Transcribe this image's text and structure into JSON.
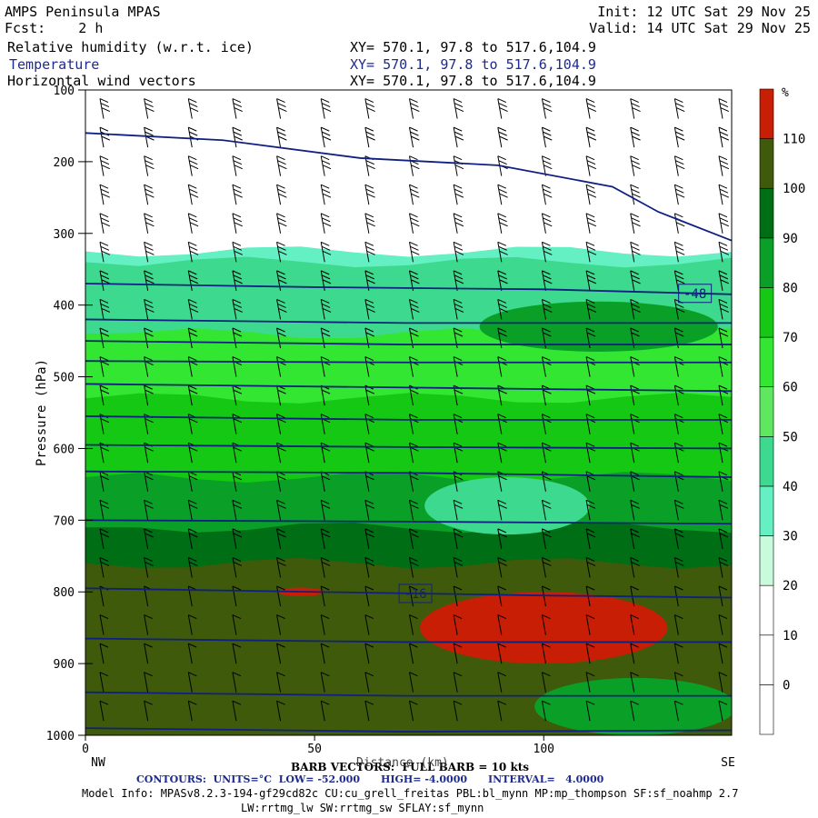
{
  "header": {
    "title": "AMPS Peninsula MPAS",
    "fcst": "Fcst:    2 h",
    "init": "Init: 12 UTC Sat 29 Nov 25",
    "valid": "Valid: 14 UTC Sat 29 Nov 25",
    "fields": [
      {
        "label": "Relative humidity (w.r.t. ice)",
        "xy": "XY= 570.1, 97.8 to 517.6,104.9"
      },
      {
        "label": "Temperature",
        "xy": "XY= 570.1, 97.8 to 517.6,104.9"
      },
      {
        "label": "Horizontal wind vectors",
        "xy": "XY= 570.1, 97.8 to 517.6,104.9"
      }
    ]
  },
  "footer": {
    "barb": "BARB VECTORS:  FULL BARB = 10 kts",
    "distance_label": "Distance (km)",
    "contours": "CONTOURS:  UNITS=°C  LOW= -52.000      HIGH= -4.0000      INTERVAL=   4.0000",
    "model_info": "Model Info: MPASv8.2.3-194-gf29cd82c CU:cu_grell_freitas PBL:bl_mynn MP:mp_thompson SF:sf_noahmp 2.7",
    "model_info2": "LW:rrtmg_lw SW:rrtmg_sw SFLAY:sf_mynn"
  },
  "chart_data": {
    "type": "heatmap",
    "title": "AMPS Peninsula MPAS",
    "ylabel": "Pressure (hPa)",
    "xlabel": "Distance (km)",
    "xlim": [
      0,
      141
    ],
    "ylim": [
      1000,
      100
    ],
    "x_ticks": [
      0,
      50,
      100
    ],
    "y_ticks": [
      100,
      200,
      300,
      400,
      500,
      600,
      700,
      800,
      900,
      1000
    ],
    "x_end_labels": {
      "left": "NW",
      "right": "SE"
    },
    "colorbar": {
      "unit": "%",
      "levels": [
        0,
        10,
        20,
        30,
        40,
        50,
        60,
        70,
        80,
        90,
        100,
        110
      ],
      "colors": [
        "#ffffff",
        "#ffffff",
        "#ffffff",
        "#c8fadc",
        "#64f0c3",
        "#3cd98e",
        "#5fe85f",
        "#32e632",
        "#14c814",
        "#0aa028",
        "#006e14",
        "#3f5a0a",
        "#c81e05"
      ]
    },
    "rh_layers": [
      {
        "p_top": 325,
        "p_bot": 1000,
        "rh": 35
      },
      {
        "p_top": 340,
        "p_bot": 1000,
        "rh": 45
      },
      {
        "p_top": 440,
        "p_bot": 1000,
        "rh": 65
      },
      {
        "p_top": 530,
        "p_bot": 1000,
        "rh": 75
      },
      {
        "p_top": 640,
        "p_bot": 1000,
        "rh": 85
      },
      {
        "p_top": 710,
        "p_bot": 1000,
        "rh": 95
      },
      {
        "p_top": 760,
        "p_bot": 1000,
        "rh": 105
      }
    ],
    "rh_patches": [
      {
        "x": 92,
        "p": 680,
        "dx": 18,
        "dp": 40,
        "rh": 45
      },
      {
        "x": 112,
        "p": 430,
        "dx": 26,
        "dp": 35,
        "rh": 85
      },
      {
        "x": 100,
        "p": 850,
        "dx": 27,
        "dp": 50,
        "rh": 115
      },
      {
        "x": 47,
        "p": 800,
        "dx": 5,
        "dp": 6,
        "rh": 115
      },
      {
        "x": 120,
        "p": 960,
        "dx": 22,
        "dp": 40,
        "rh": 85
      }
    ],
    "temperature_contours": [
      {
        "points": [
          [
            0,
            160
          ],
          [
            30,
            170
          ],
          [
            60,
            195
          ],
          [
            90,
            205
          ],
          [
            115,
            235
          ],
          [
            125,
            270
          ],
          [
            141,
            310
          ]
        ]
      },
      {
        "points": [
          [
            0,
            370
          ],
          [
            50,
            375
          ],
          [
            100,
            378
          ],
          [
            141,
            385
          ]
        ],
        "label": "-48",
        "label_x": 133
      },
      {
        "points": [
          [
            0,
            420
          ],
          [
            70,
            425
          ],
          [
            141,
            425
          ]
        ]
      },
      {
        "points": [
          [
            0,
            450
          ],
          [
            70,
            455
          ],
          [
            141,
            455
          ]
        ]
      },
      {
        "points": [
          [
            0,
            478
          ],
          [
            70,
            480
          ],
          [
            141,
            480
          ]
        ]
      },
      {
        "points": [
          [
            0,
            510
          ],
          [
            70,
            515
          ],
          [
            141,
            520
          ]
        ]
      },
      {
        "points": [
          [
            0,
            555
          ],
          [
            70,
            560
          ],
          [
            141,
            560
          ]
        ]
      },
      {
        "points": [
          [
            0,
            595
          ],
          [
            70,
            598
          ],
          [
            141,
            600
          ]
        ]
      },
      {
        "points": [
          [
            0,
            632
          ],
          [
            70,
            634
          ],
          [
            141,
            640
          ]
        ]
      },
      {
        "points": [
          [
            0,
            700
          ],
          [
            70,
            702
          ],
          [
            141,
            705
          ]
        ]
      },
      {
        "points": [
          [
            0,
            795
          ],
          [
            50,
            800
          ],
          [
            100,
            805
          ],
          [
            141,
            808
          ]
        ],
        "label": "-16",
        "label_x": 72
      },
      {
        "points": [
          [
            0,
            865
          ],
          [
            70,
            870
          ],
          [
            141,
            870
          ]
        ]
      },
      {
        "points": [
          [
            0,
            940
          ],
          [
            70,
            945
          ],
          [
            141,
            945
          ]
        ]
      },
      {
        "points": [
          [
            0,
            990
          ],
          [
            70,
            995
          ],
          [
            141,
            993
          ]
        ]
      }
    ],
    "wind_columns": 15,
    "wind_levels": [
      140,
      180,
      220,
      260,
      300,
      340,
      380,
      420,
      460,
      500,
      540,
      580,
      620,
      660,
      700,
      740,
      780,
      820,
      860,
      900,
      940,
      980
    ]
  }
}
